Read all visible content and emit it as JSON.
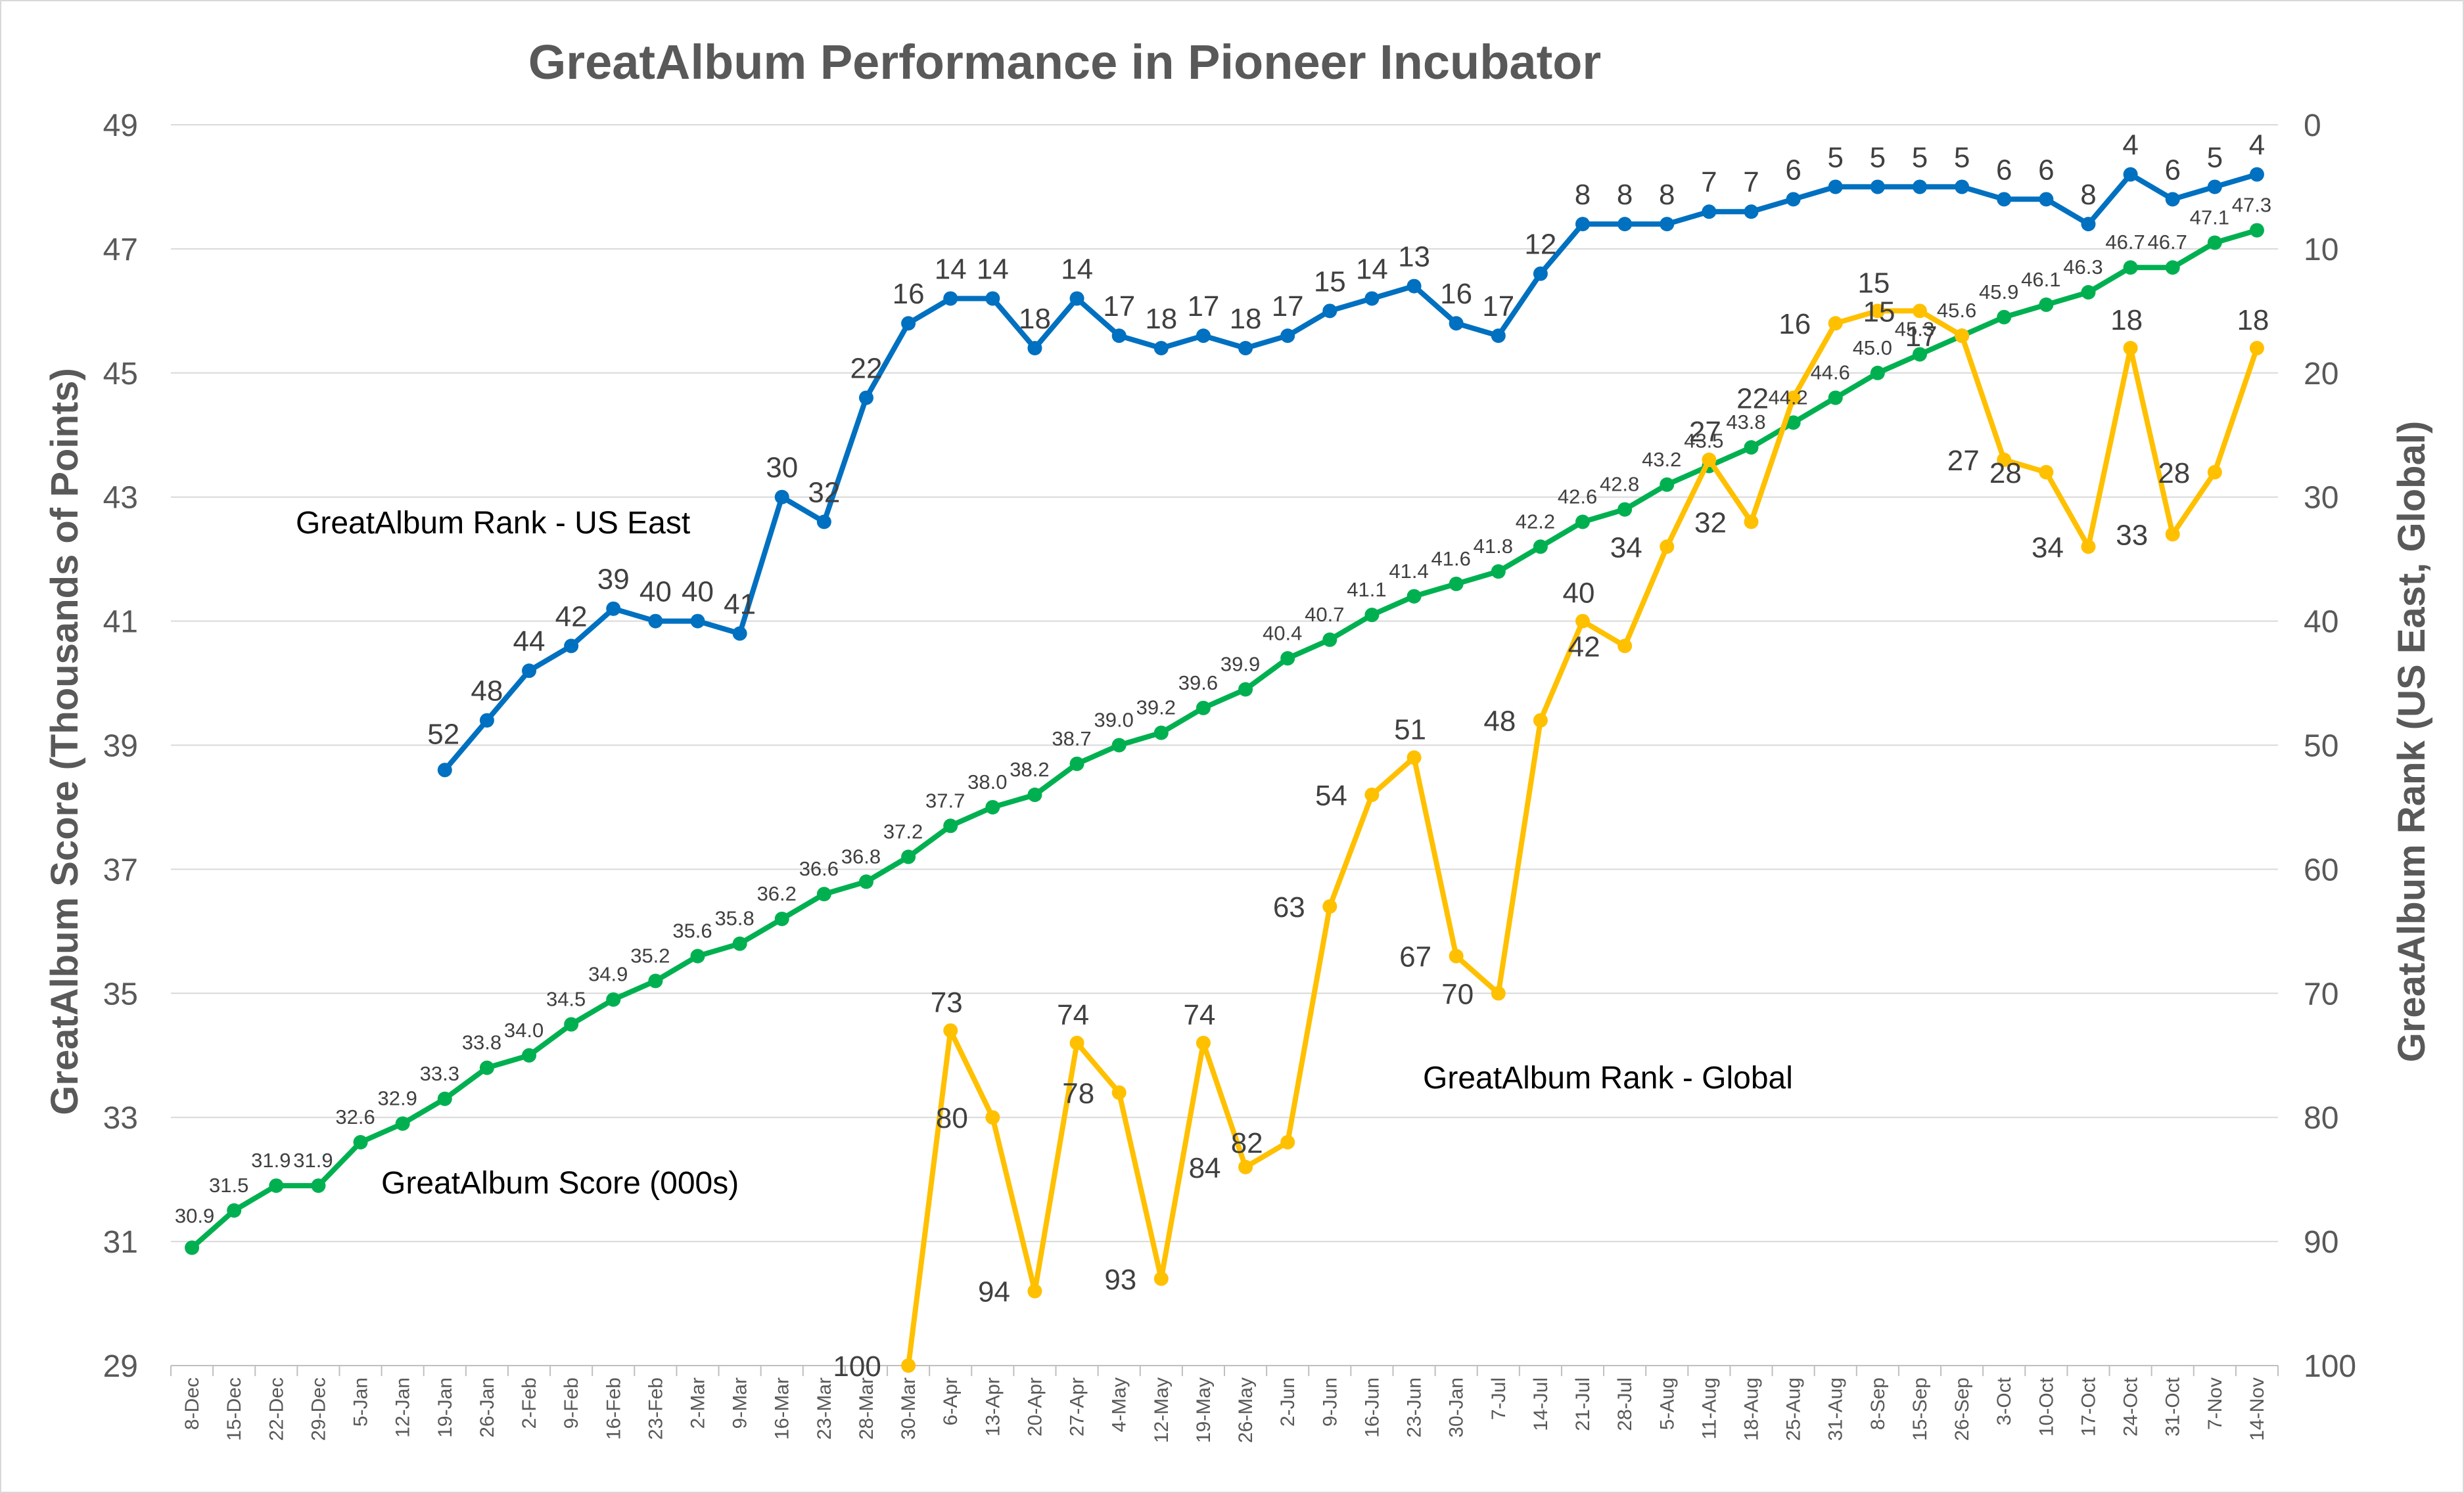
{
  "chart_data": {
    "type": "line",
    "title": "GreatAlbum Performance in Pioneer Incubator",
    "ylabel_left": "GreatAlbum Score (Thousands of Points)",
    "ylabel_right": "GreatAlbum Rank (US East, Global)",
    "y_left_range": [
      29,
      49
    ],
    "y_left_ticks": [
      "29",
      "31",
      "33",
      "35",
      "37",
      "39",
      "41",
      "43",
      "45",
      "47",
      "49"
    ],
    "y_right_range": [
      0,
      100
    ],
    "y_right_reversed": true,
    "y_right_ticks": [
      "0",
      "10",
      "20",
      "30",
      "40",
      "50",
      "60",
      "70",
      "80",
      "90",
      "100"
    ],
    "grid": "horizontal",
    "categories": [
      "8-Dec",
      "15-Dec",
      "22-Dec",
      "29-Dec",
      "5-Jan",
      "12-Jan",
      "19-Jan",
      "26-Jan",
      "2-Feb",
      "9-Feb",
      "16-Feb",
      "23-Feb",
      "2-Mar",
      "9-Mar",
      "16-Mar",
      "23-Mar",
      "28-Mar",
      "30-Mar",
      "6-Apr",
      "13-Apr",
      "20-Apr",
      "27-Apr",
      "4-May",
      "12-May",
      "19-May",
      "26-May",
      "2-Jun",
      "9-Jun",
      "16-Jun",
      "23-Jun",
      "30-Jan",
      "7-Jul",
      "14-Jul",
      "21-Jul",
      "28-Jul",
      "5-Aug",
      "11-Aug",
      "18-Aug",
      "25-Aug",
      "31-Aug",
      "8-Sep",
      "15-Sep",
      "26-Sep",
      "3-Oct",
      "10-Oct",
      "17-Oct",
      "24-Oct",
      "31-Oct",
      "7-Nov",
      "14-Nov"
    ],
    "series": [
      {
        "name": "GreatAlbum Score (000s)",
        "axis": "left",
        "color": "#00b050",
        "values": [
          30.9,
          31.5,
          31.9,
          31.9,
          32.6,
          32.9,
          33.3,
          33.8,
          34.0,
          34.5,
          34.9,
          35.2,
          35.6,
          35.8,
          36.2,
          36.6,
          36.8,
          37.2,
          37.7,
          38.0,
          38.2,
          38.7,
          39.0,
          39.2,
          39.6,
          39.9,
          40.4,
          40.7,
          41.1,
          41.4,
          41.6,
          41.8,
          42.2,
          42.6,
          42.8,
          43.2,
          43.5,
          43.8,
          44.2,
          44.6,
          45.0,
          45.3,
          45.6,
          45.9,
          46.1,
          46.3,
          46.7,
          46.7,
          47.1,
          47.3
        ],
        "labels": [
          "30.9",
          "31.5",
          "31.9",
          "31.9",
          "32.6",
          "32.9",
          "33.3",
          "33.8",
          "34.0",
          "34.5",
          "34.9",
          "35.2",
          "35.6",
          "35.8",
          "36.2",
          "36.6",
          "36.8",
          "37.2",
          "37.7",
          "38.0",
          "38.2",
          "38.7",
          "39.0",
          "39.2",
          "39.6",
          "39.9",
          "40.4",
          "40.7",
          "41.1",
          "41.4",
          "41.6",
          "41.8",
          "42.2",
          "42.6",
          "42.8",
          "43.2",
          "43.5",
          "43.8",
          "44.2",
          "44.6",
          "45.0",
          "45.3",
          "45.6",
          "45.9",
          "46.1",
          "46.3",
          "46.7",
          "46.7",
          "47.1",
          "47.3"
        ]
      },
      {
        "name": "GreatAlbum Rank - US East",
        "axis": "right",
        "color": "#0070c0",
        "values": [
          null,
          null,
          null,
          null,
          null,
          null,
          52,
          48,
          44,
          42,
          39,
          40,
          40,
          41,
          30,
          32,
          22,
          16,
          14,
          14,
          18,
          14,
          17,
          18,
          17,
          18,
          17,
          15,
          14,
          13,
          16,
          17,
          12,
          8,
          8,
          8,
          7,
          7,
          6,
          5,
          5,
          5,
          5,
          6,
          6,
          8,
          4,
          6,
          5,
          4
        ],
        "labels": [
          "",
          "",
          "",
          "",
          "",
          "",
          "52",
          "48",
          "44",
          "42",
          "39",
          "40",
          "40",
          "41",
          "30",
          "32",
          "22",
          "16",
          "14",
          "14",
          "18",
          "14",
          "17",
          "18",
          "17",
          "18",
          "17",
          "15",
          "14",
          "13",
          "16",
          "17",
          "12",
          "8",
          "8",
          "8",
          "7",
          "7",
          "6",
          "5",
          "5",
          "5",
          "5",
          "6",
          "6",
          "8",
          "4",
          "6",
          "5",
          "4"
        ]
      },
      {
        "name": "GreatAlbum Rank - Global",
        "axis": "right",
        "color": "#ffc000",
        "values": [
          null,
          null,
          null,
          null,
          null,
          null,
          null,
          null,
          null,
          null,
          null,
          null,
          null,
          null,
          null,
          null,
          null,
          100,
          73,
          80,
          94,
          74,
          78,
          93,
          74,
          84,
          82,
          63,
          54,
          51,
          67,
          70,
          48,
          40,
          42,
          34,
          27,
          32,
          22,
          16,
          15,
          15,
          17,
          27,
          28,
          34,
          18,
          33,
          28,
          18
        ],
        "labels": [
          "",
          "",
          "",
          "",
          "",
          "",
          "",
          "",
          "",
          "",
          "",
          "",
          "",
          "",
          "",
          "",
          "",
          "100",
          "73",
          "80",
          "94",
          "74",
          "78",
          "93",
          "74",
          "84",
          "82",
          "63",
          "54",
          "51",
          "67",
          "70",
          "48",
          "40",
          "42",
          "34",
          "27",
          "32",
          "22",
          "16",
          "15",
          "15",
          "17",
          "27",
          "28",
          "34",
          "18",
          "33",
          "28",
          "18"
        ]
      }
    ]
  }
}
